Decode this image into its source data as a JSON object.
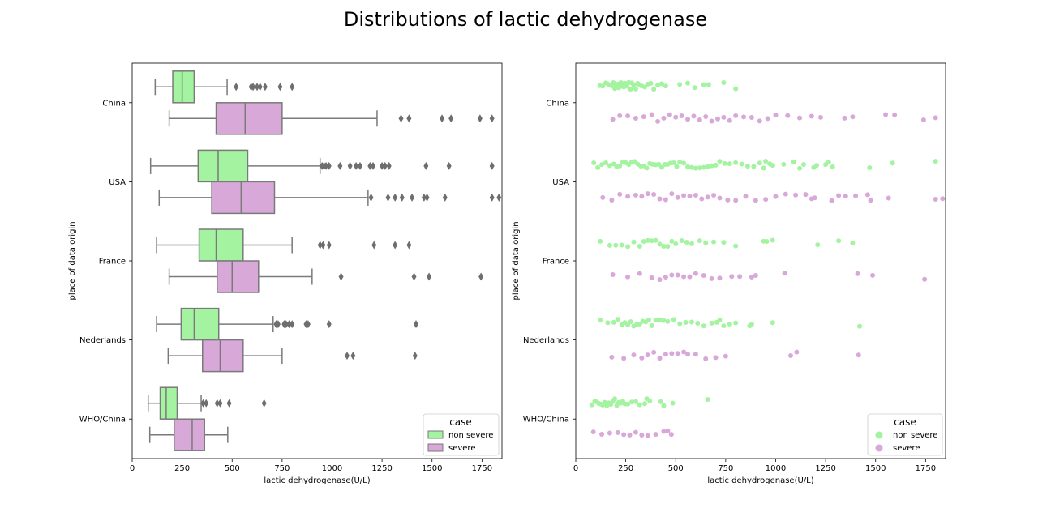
{
  "title": "Distributions of lactic dehydrogenase",
  "colors": {
    "non_severe": "#a3f3a0",
    "severe": "#d8a8d9",
    "line": "#7a7a7a",
    "flier": "#6e6e6e"
  },
  "chart_data": [
    {
      "type": "box",
      "xlabel": "lactic dehydrogenase(U/L)",
      "ylabel": "place of data origin",
      "xlim": [
        0,
        1850
      ],
      "xticks": [
        0,
        250,
        500,
        750,
        1000,
        1250,
        1500,
        1750
      ],
      "categories": [
        "China",
        "USA",
        "France",
        "Nederlands",
        "WHO/China"
      ],
      "legend": {
        "title": "case",
        "position": "lower-right",
        "entries": [
          "non severe",
          "severe"
        ]
      },
      "series": [
        {
          "name": "non severe",
          "boxes": [
            {
              "category": "China",
              "whislo": 115,
              "q1": 203,
              "med": 250,
              "q3": 310,
              "whishi": 475,
              "fliers": [
                520,
                595,
                605,
                625,
                640,
                665,
                740,
                800
              ]
            },
            {
              "category": "USA",
              "whislo": 92,
              "q1": 330,
              "med": 430,
              "q3": 578,
              "whishi": 940,
              "fliers": [
                950,
                960,
                970,
                985,
                1040,
                1090,
                1120,
                1140,
                1190,
                1205,
                1250,
                1265,
                1285,
                1470,
                1585,
                1800
              ]
            },
            {
              "category": "France",
              "whislo": 122,
              "q1": 335,
              "med": 420,
              "q3": 555,
              "whishi": 800,
              "fliers": [
                940,
                955,
                985,
                1210,
                1315,
                1385
              ]
            },
            {
              "category": "Nederlands",
              "whislo": 122,
              "q1": 245,
              "med": 310,
              "q3": 433,
              "whishi": 705,
              "fliers": [
                720,
                730,
                760,
                770,
                785,
                800,
                870,
                880,
                985,
                1420
              ]
            },
            {
              "category": "WHO/China",
              "whislo": 80,
              "q1": 140,
              "med": 170,
              "q3": 225,
              "whishi": 345,
              "fliers": [
                355,
                370,
                425,
                440,
                485,
                660
              ]
            }
          ]
        },
        {
          "name": "severe",
          "boxes": [
            {
              "category": "China",
              "whislo": 185,
              "q1": 420,
              "med": 565,
              "q3": 750,
              "whishi": 1225,
              "fliers": [
                1345,
                1385,
                1550,
                1595,
                1740,
                1800
              ]
            },
            {
              "category": "USA",
              "whislo": 135,
              "q1": 398,
              "med": 545,
              "q3": 712,
              "whishi": 1180,
              "fliers": [
                1195,
                1280,
                1315,
                1350,
                1400,
                1460,
                1475,
                1565,
                1800,
                1835
              ]
            },
            {
              "category": "France",
              "whislo": 185,
              "q1": 425,
              "med": 500,
              "q3": 632,
              "whishi": 900,
              "fliers": [
                1045,
                1410,
                1485,
                1745
              ]
            },
            {
              "category": "Nederlands",
              "whislo": 180,
              "q1": 352,
              "med": 440,
              "q3": 555,
              "whishi": 750,
              "fliers": [
                1075,
                1105,
                1415
              ]
            },
            {
              "category": "WHO/China",
              "whislo": 88,
              "q1": 210,
              "med": 300,
              "q3": 362,
              "whishi": 478,
              "fliers": []
            }
          ]
        }
      ]
    },
    {
      "type": "scatter",
      "xlabel": "lactic dehydrogenase(U/L)",
      "ylabel": "place of data origin",
      "xlim": [
        0,
        1850
      ],
      "xticks": [
        0,
        250,
        500,
        750,
        1000,
        1250,
        1500,
        1750
      ],
      "categories": [
        "China",
        "USA",
        "France",
        "Nederlands",
        "WHO/China"
      ],
      "legend": {
        "title": "case",
        "position": "lower-right",
        "entries": [
          "non severe",
          "severe"
        ]
      },
      "series": [
        {
          "name": "non severe",
          "points": [
            {
              "category": "China",
              "values": [
                120,
                135,
                150,
                160,
                170,
                180,
                188,
                195,
                200,
                205,
                210,
                215,
                220,
                225,
                230,
                235,
                240,
                245,
                250,
                255,
                260,
                265,
                270,
                275,
                280,
                290,
                300,
                310,
                320,
                330,
                345,
                360,
                375,
                390,
                410,
                430,
                450,
                520,
                560,
                595,
                640,
                665,
                740,
                800
              ]
            },
            {
              "category": "USA",
              "values": [
                90,
                110,
                130,
                150,
                170,
                190,
                205,
                220,
                235,
                250,
                265,
                280,
                295,
                310,
                325,
                340,
                355,
                370,
                385,
                400,
                415,
                430,
                445,
                460,
                475,
                490,
                505,
                520,
                540,
                560,
                580,
                600,
                620,
                640,
                660,
                680,
                700,
                720,
                745,
                770,
                800,
                830,
                860,
                890,
                920,
                940,
                950,
                970,
                985,
                1040,
                1090,
                1120,
                1140,
                1190,
                1205,
                1250,
                1265,
                1285,
                1470,
                1585,
                1800
              ]
            },
            {
              "category": "France",
              "values": [
                122,
                170,
                200,
                230,
                260,
                290,
                320,
                340,
                360,
                380,
                400,
                420,
                440,
                460,
                480,
                500,
                530,
                555,
                580,
                620,
                650,
                690,
                740,
                800,
                940,
                955,
                985,
                1210,
                1315,
                1385
              ]
            },
            {
              "category": "Nederlands",
              "values": [
                122,
                160,
                190,
                210,
                230,
                245,
                260,
                275,
                290,
                305,
                320,
                335,
                350,
                365,
                380,
                400,
                420,
                440,
                460,
                490,
                520,
                550,
                580,
                610,
                640,
                680,
                705,
                720,
                740,
                770,
                800,
                870,
                880,
                985,
                1420
              ]
            },
            {
              "category": "WHO/China",
              "values": [
                80,
                95,
                105,
                115,
                125,
                135,
                145,
                155,
                165,
                175,
                185,
                195,
                205,
                215,
                225,
                235,
                245,
                260,
                280,
                300,
                320,
                345,
                355,
                370,
                425,
                440,
                485,
                660
              ]
            }
          ]
        },
        {
          "name": "severe",
          "points": [
            {
              "category": "China",
              "values": [
                185,
                220,
                260,
                300,
                340,
                380,
                410,
                440,
                470,
                500,
                530,
                560,
                590,
                620,
                650,
                680,
                710,
                740,
                770,
                800,
                840,
                880,
                920,
                960,
                1000,
                1060,
                1120,
                1180,
                1225,
                1345,
                1385,
                1550,
                1595,
                1740,
                1800
              ]
            },
            {
              "category": "USA",
              "values": [
                135,
                180,
                220,
                260,
                300,
                330,
                360,
                390,
                420,
                450,
                480,
                510,
                540,
                570,
                600,
                630,
                660,
                690,
                720,
                760,
                800,
                850,
                900,
                950,
                1000,
                1050,
                1100,
                1150,
                1180,
                1195,
                1280,
                1315,
                1350,
                1400,
                1460,
                1475,
                1565,
                1800,
                1835
              ]
            },
            {
              "category": "France",
              "values": [
                185,
                260,
                320,
                380,
                420,
                450,
                480,
                510,
                540,
                570,
                600,
                640,
                680,
                720,
                780,
                820,
                880,
                900,
                1045,
                1410,
                1485,
                1745
              ]
            },
            {
              "category": "Nederlands",
              "values": [
                180,
                240,
                290,
                330,
                360,
                390,
                420,
                450,
                480,
                510,
                540,
                560,
                600,
                650,
                700,
                750,
                1075,
                1105,
                1415
              ]
            },
            {
              "category": "WHO/China",
              "values": [
                88,
                130,
                170,
                210,
                240,
                270,
                300,
                330,
                360,
                400,
                440,
                460,
                478
              ]
            }
          ]
        }
      ]
    }
  ]
}
